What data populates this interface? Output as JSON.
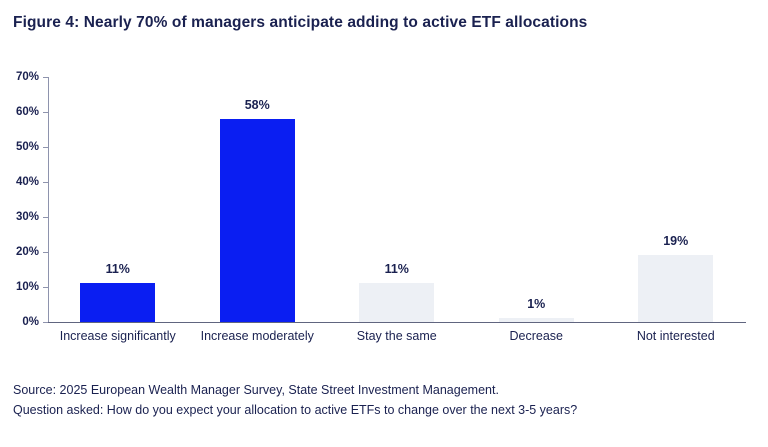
{
  "title": "Figure 4: Nearly 70% of managers anticipate adding to active ETF allocations",
  "footer": {
    "source_line": "Source: 2025 European Wealth Manager Survey, State Street Investment Management.",
    "question_line": "Question asked: How do you expect your allocation to active ETFs to change over the next 3-5 years?"
  },
  "colors": {
    "bar_blue": "#0a1ef2",
    "bar_gray": "#edf0f5",
    "text_navy": "#1a2150",
    "y_axis_line": "#8e93ad",
    "x_axis_line": "#60657f"
  },
  "chart_data": {
    "type": "bar",
    "title": "Figure 4: Nearly 70% of managers anticipate adding to active ETF allocations",
    "categories": [
      "Increase significantly",
      "Increase moderately",
      "Stay the same",
      "Decrease",
      "Not interested"
    ],
    "values": [
      11,
      58,
      11,
      1,
      19
    ],
    "value_labels": [
      "11%",
      "58%",
      "11%",
      "1%",
      "19%"
    ],
    "bar_color_roles": [
      "blue",
      "blue",
      "gray",
      "gray",
      "gray"
    ],
    "y_tick_labels": [
      "70%",
      "60%",
      "50%",
      "40%",
      "30%",
      "20%",
      "10%",
      "0%"
    ],
    "ylim": [
      0,
      70
    ],
    "xlabel": "",
    "ylabel": "",
    "grid": false,
    "legend_position": "none"
  }
}
